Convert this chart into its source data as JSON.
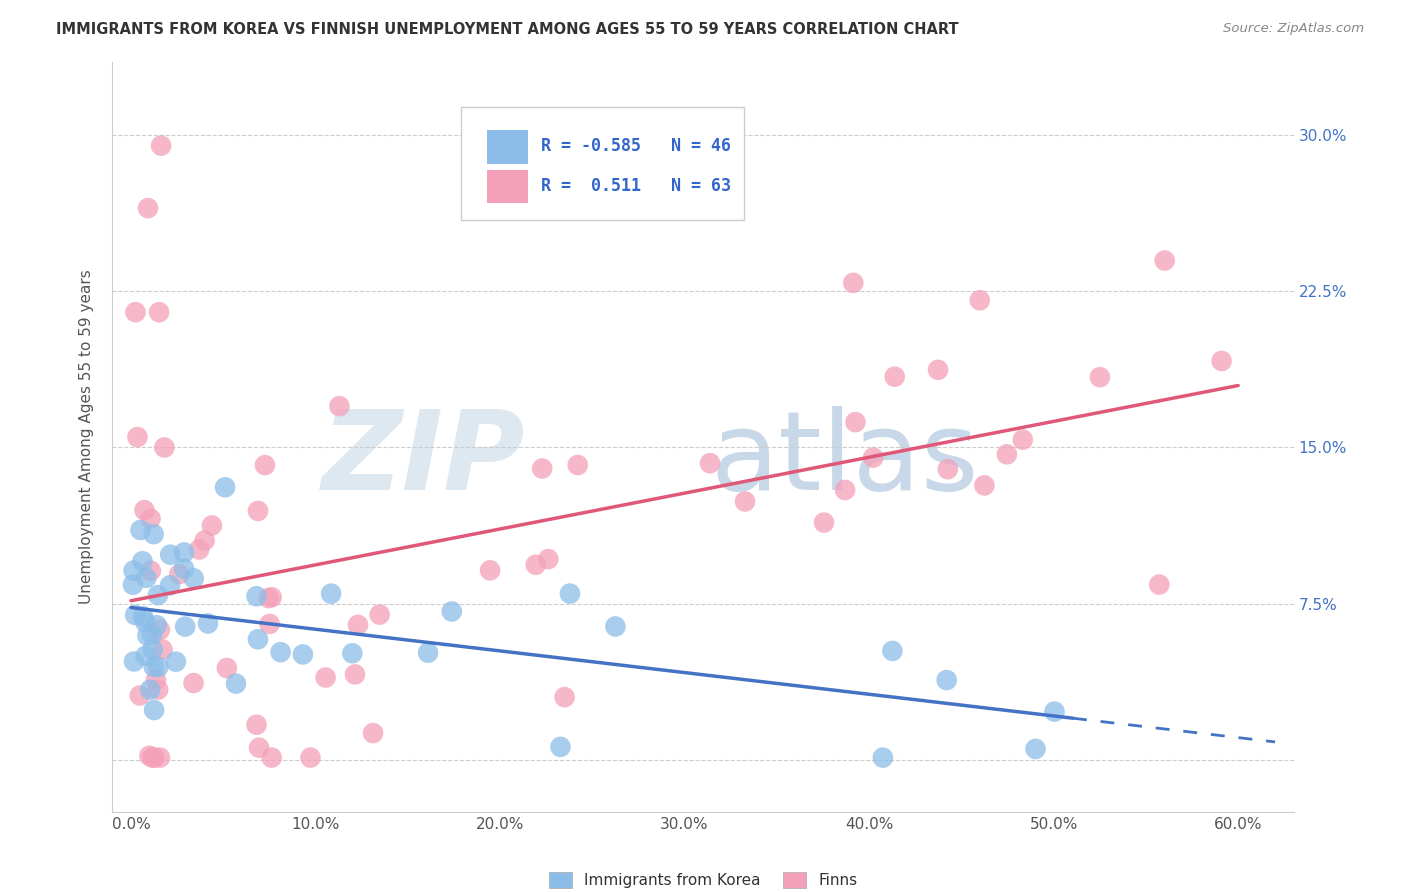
{
  "title": "IMMIGRANTS FROM KOREA VS FINNISH UNEMPLOYMENT AMONG AGES 55 TO 59 YEARS CORRELATION CHART",
  "source": "Source: ZipAtlas.com",
  "ylabel": "Unemployment Among Ages 55 to 59 years",
  "xlabel_ticks": [
    "0.0%",
    "10.0%",
    "20.0%",
    "30.0%",
    "40.0%",
    "50.0%",
    "60.0%"
  ],
  "xlabel_vals": [
    0.0,
    0.1,
    0.2,
    0.3,
    0.4,
    0.5,
    0.6
  ],
  "ytick_vals": [
    0.0,
    0.075,
    0.15,
    0.225,
    0.3
  ],
  "ytick_labels": [
    "",
    "7.5%",
    "15.0%",
    "22.5%",
    "30.0%"
  ],
  "xlim": [
    -0.01,
    0.63
  ],
  "ylim": [
    -0.025,
    0.335
  ],
  "korea_R": -0.585,
  "korea_N": 46,
  "finn_R": 0.511,
  "finn_N": 63,
  "korea_color": "#8bbde8",
  "finn_color": "#f4a0b8",
  "korea_line_color": "#4472c4",
  "finn_line_color": "#e05878",
  "watermark_zip_color": "#dde8f0",
  "watermark_atlas_color": "#c8d8e8",
  "background_color": "#ffffff",
  "grid_color": "#cccccc",
  "title_color": "#333333",
  "source_color": "#888888",
  "ylabel_color": "#555555",
  "tick_label_color": "#555555",
  "right_tick_color": "#4472c4",
  "legend_text_color": "#3366cc",
  "bottom_legend_text_color": "#333333"
}
